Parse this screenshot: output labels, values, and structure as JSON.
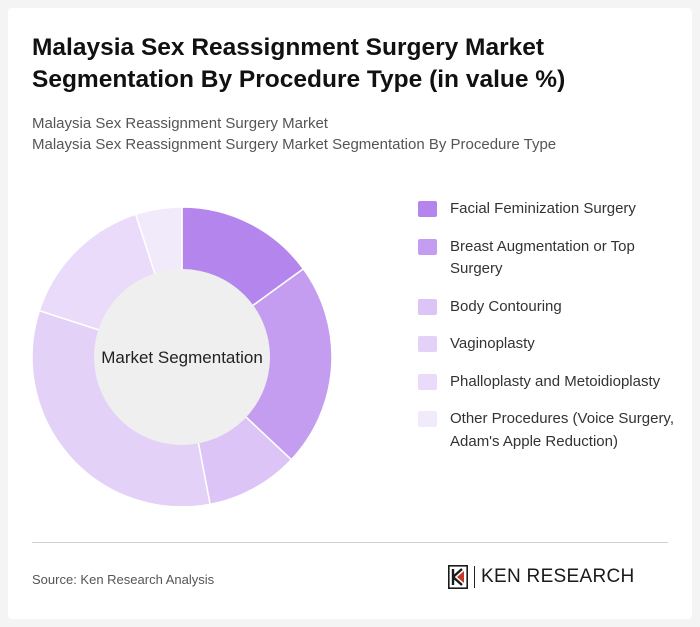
{
  "title": "Malaysia Sex Reassignment Surgery Market Segmentation By Procedure Type (in value %)",
  "subtitle_line1": "Malaysia Sex Reassignment Surgery Market",
  "subtitle_line2": "Malaysia Sex Reassignment Surgery Market Segmentation By Procedure Type",
  "chart_data": {
    "type": "pie",
    "center_label": "Market Segmentation",
    "categories": [
      "Facial Feminization Surgery",
      "Breast Augmentation or Top Surgery",
      "Body Contouring",
      "Vaginoplasty",
      "Phalloplasty and Metoidioplasty",
      "Other Procedures (Voice Surgery, Adam's Apple Reduction)"
    ],
    "values": [
      15,
      22,
      10,
      33,
      15,
      5
    ],
    "colors": [
      "#b485ec",
      "#c59df0",
      "#dcc4f6",
      "#e3d1f8",
      "#e9dbf9",
      "#f1eafb"
    ],
    "legend_position": "right"
  },
  "source": "Source: Ken Research Analysis",
  "logo_text": "KEN RESEARCH",
  "logo_letter": "K"
}
